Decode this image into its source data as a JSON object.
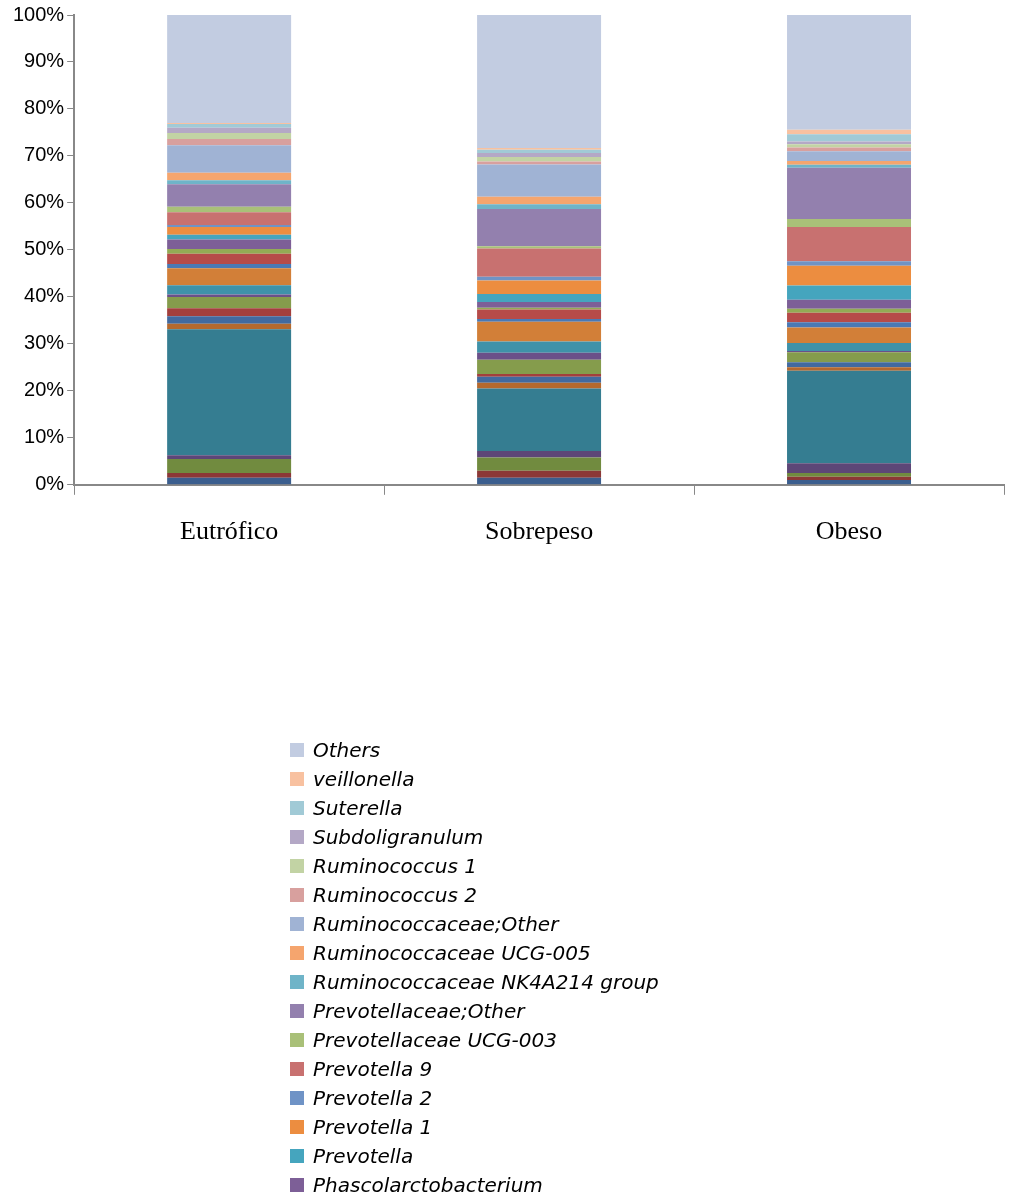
{
  "chart_data": {
    "type": "bar",
    "stacked": true,
    "categories": [
      "Eutrófico",
      "Sobrepeso",
      "Obeso"
    ],
    "ylim": [
      0,
      100
    ],
    "yticks": [
      {
        "value": 0,
        "label": "0%"
      },
      {
        "value": 10,
        "label": "10%"
      },
      {
        "value": 20,
        "label": "20%"
      },
      {
        "value": 30,
        "label": "30%"
      },
      {
        "value": 40,
        "label": "40%"
      },
      {
        "value": 50,
        "label": "50%"
      },
      {
        "value": 60,
        "label": "60%"
      },
      {
        "value": 70,
        "label": "70%"
      },
      {
        "value": 80,
        "label": "80%"
      },
      {
        "value": 90,
        "label": "90%"
      },
      {
        "value": 100,
        "label": "100%"
      }
    ],
    "grid": false,
    "legend": "bottom",
    "series": [
      {
        "color": "#3b5e8e",
        "values": [
          1.5,
          1.5,
          1.0
        ]
      },
      {
        "color": "#8c3836",
        "values": [
          1.0,
          1.5,
          0.7
        ]
      },
      {
        "color": "#718b3f",
        "values": [
          3.0,
          2.8,
          0.8
        ]
      },
      {
        "color": "#5d4677",
        "values": [
          0.8,
          1.4,
          2.1
        ]
      },
      {
        "color": "#357d91",
        "values": [
          26.8,
          13.3,
          19.7
        ]
      },
      {
        "color": "#b5692e",
        "values": [
          1.2,
          1.2,
          0.7
        ]
      },
      {
        "color": "#426a9f",
        "values": [
          1.6,
          1.3,
          1.1
        ]
      },
      {
        "color": "#a33f3c",
        "values": [
          1.7,
          0.6,
          0
        ]
      },
      {
        "color": "#859c4c",
        "values": [
          2.4,
          3.0,
          2.1
        ]
      },
      {
        "color": "#6b5089",
        "values": [
          0.5,
          1.5,
          0.3
        ]
      },
      {
        "color": "#3f92a9",
        "values": [
          2.0,
          2.4,
          1.7
        ]
      },
      {
        "color": "#d27f38",
        "values": [
          3.6,
          4.2,
          3.3
        ]
      },
      {
        "color": "#4a79b5",
        "values": [
          0.9,
          0.6,
          1.1
        ]
      },
      {
        "color": "#b64b49",
        "values": [
          2.2,
          2.0,
          2.0
        ]
      },
      {
        "color": "#93ab55",
        "values": [
          1.0,
          0.4,
          0.9
        ]
      },
      {
        "name": "Phascolarctobacterium",
        "color": "#7d5f97",
        "values": [
          2.0,
          1.2,
          1.9
        ]
      },
      {
        "name": "Prevotella",
        "color": "#45a5be",
        "values": [
          1.0,
          1.7,
          3.0
        ]
      },
      {
        "name": "Prevotella 1",
        "color": "#ec8d40",
        "values": [
          1.7,
          2.9,
          4.2
        ]
      },
      {
        "name": "Prevotella 2",
        "color": "#6f93c6",
        "values": [
          0.4,
          0.8,
          1.0
        ]
      },
      {
        "name": "Prevotella 9",
        "color": "#c87170",
        "values": [
          2.7,
          6.0,
          7.3
        ]
      },
      {
        "name": "Prevotellaceae UCG-003",
        "color": "#a9c078",
        "values": [
          1.2,
          0.5,
          1.7
        ]
      },
      {
        "name": "Prevotellaceae;Other",
        "color": "#9380ae",
        "values": [
          4.8,
          7.9,
          10.9
        ]
      },
      {
        "name": "Ruminococcaceae NK4A214 group",
        "color": "#6fb4c8",
        "values": [
          0.8,
          1.0,
          0.6
        ]
      },
      {
        "name": "Ruminococcaceae UCG-005",
        "color": "#f5a56e",
        "values": [
          1.6,
          1.6,
          0.8
        ]
      },
      {
        "name": "Ruminococcaceae;Other",
        "color": "#a0b3d4",
        "values": [
          5.9,
          6.9,
          2.1
        ]
      },
      {
        "name": "Ruminococcus 2",
        "color": "#d8a09e",
        "values": [
          1.3,
          0.6,
          0.8
        ]
      },
      {
        "name": "Ruminococcus 1",
        "color": "#c2d3a4",
        "values": [
          1.3,
          1.0,
          0.7
        ]
      },
      {
        "name": "Subdoligranulum",
        "color": "#b4a8c6",
        "values": [
          1.1,
          0.8,
          0.6
        ]
      },
      {
        "name": "Suterella",
        "color": "#a1cad6",
        "values": [
          0.8,
          0.7,
          1.5
        ]
      },
      {
        "name": "veillonella",
        "color": "#f8c1a0",
        "values": [
          0.2,
          0.4,
          1.0
        ]
      },
      {
        "name": "Others",
        "color": "#c2cce1",
        "values": [
          23.0,
          28.3,
          24.4
        ]
      }
    ]
  }
}
